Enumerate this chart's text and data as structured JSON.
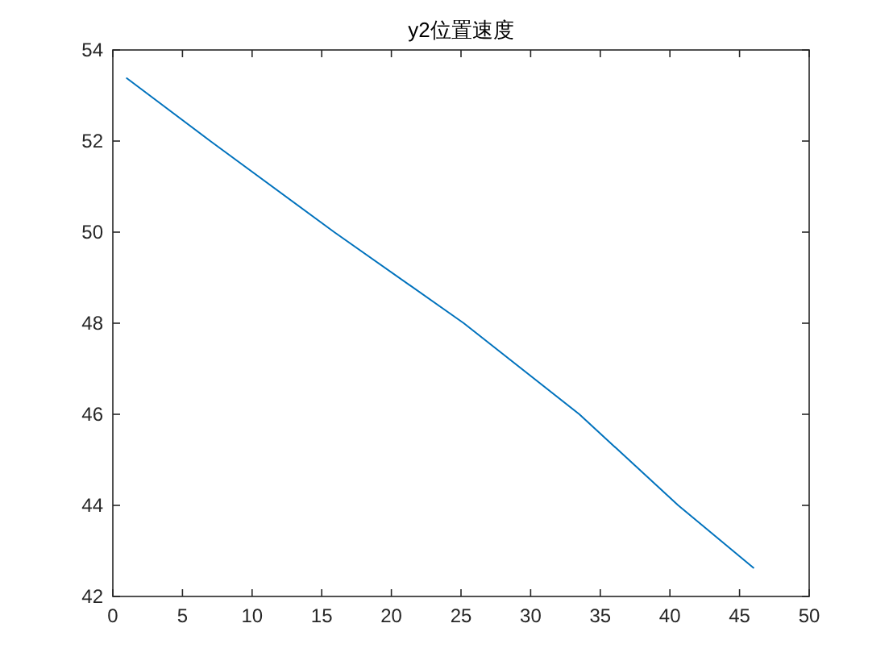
{
  "chart_data": {
    "type": "line",
    "title": "y2位置速度",
    "x": [
      1,
      7,
      15.9,
      25.2,
      33.5,
      40.6,
      46
    ],
    "series": [
      {
        "color": "#0072bd",
        "values": [
          53.38,
          52,
          50,
          48,
          46,
          44,
          42.63
        ]
      }
    ],
    "xlim": [
      0,
      50
    ],
    "xticks": [
      0,
      5,
      10,
      15,
      20,
      25,
      30,
      35,
      40,
      45,
      50
    ],
    "ylim": [
      42,
      54
    ],
    "yticks": [
      42,
      44,
      46,
      48,
      50,
      52,
      54
    ]
  }
}
